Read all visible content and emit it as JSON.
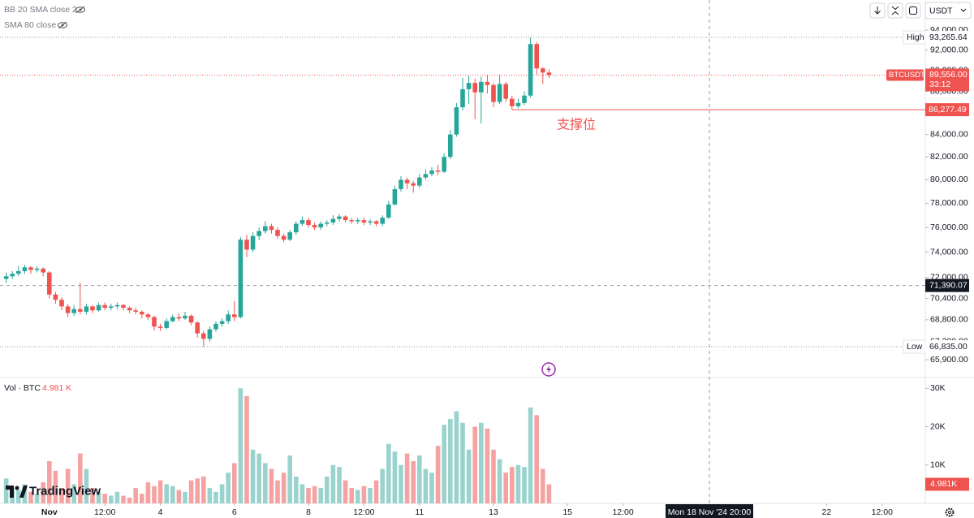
{
  "chart_data": {
    "type": "candlestick",
    "indicators": [
      "BB 20 SMA close 2",
      "SMA 80 close"
    ],
    "currency": "USDT",
    "brand": "TradingView",
    "x": [
      -7,
      -6,
      -5,
      -4,
      -3,
      -2,
      -1,
      0,
      1,
      2,
      3,
      4,
      5,
      6,
      7,
      8,
      9,
      10,
      11,
      12,
      13,
      14,
      15,
      16,
      17,
      18,
      19,
      20,
      21,
      22,
      23,
      24,
      25,
      26,
      27,
      28,
      29,
      30,
      31,
      32,
      33,
      34,
      35,
      36,
      37,
      38,
      39,
      40,
      41,
      42,
      43,
      44,
      45,
      46,
      47,
      48,
      49,
      50,
      51,
      52,
      53,
      54,
      55,
      56,
      57,
      58,
      59,
      60,
      61,
      62,
      63,
      64,
      65,
      66,
      67,
      68,
      69,
      70,
      71,
      72,
      73,
      74,
      75,
      76,
      77,
      78,
      79,
      80,
      81
    ],
    "open": [
      71900,
      72100,
      72300,
      72500,
      72800,
      72600,
      72700,
      72400,
      70700,
      70300,
      69800,
      69300,
      69600,
      69400,
      69800,
      69500,
      69900,
      69700,
      69800,
      69900,
      69700,
      69500,
      69400,
      69200,
      69000,
      68300,
      68200,
      68700,
      69000,
      68900,
      69100,
      68600,
      67800,
      67400,
      68100,
      68500,
      68700,
      69200,
      69000,
      75000,
      74200,
      75300,
      75700,
      76100,
      75800,
      75300,
      75000,
      75600,
      76300,
      76600,
      76200,
      76000,
      76300,
      76400,
      76700,
      76900,
      76600,
      76500,
      76600,
      76400,
      76500,
      76300,
      76800,
      77900,
      79200,
      80000,
      79700,
      79500,
      80200,
      80500,
      80800,
      80700,
      82000,
      84000,
      86500,
      88200,
      88800,
      87900,
      88900,
      88600,
      87000,
      88700,
      87300,
      86600,
      86900,
      87600,
      92600,
      90200,
      89800
    ],
    "high": [
      72400,
      72500,
      72900,
      73000,
      72900,
      72900,
      72800,
      72500,
      70900,
      70500,
      70000,
      69900,
      71600,
      70000,
      69900,
      70100,
      70100,
      70000,
      70100,
      70000,
      69800,
      69700,
      69500,
      69300,
      69100,
      68500,
      68900,
      69200,
      69300,
      69400,
      69200,
      68700,
      68000,
      68300,
      68700,
      68900,
      69500,
      70200,
      75200,
      75400,
      75600,
      76000,
      76500,
      76300,
      76000,
      75500,
      75800,
      76500,
      76900,
      76800,
      76400,
      76500,
      76600,
      77000,
      77100,
      77000,
      76800,
      76800,
      76800,
      76700,
      76600,
      77000,
      78200,
      79500,
      80300,
      80200,
      79900,
      80500,
      80900,
      81100,
      81300,
      82300,
      84400,
      86900,
      89300,
      89500,
      89200,
      89400,
      89600,
      88800,
      89600,
      88900,
      87600,
      87300,
      88000,
      93265.64,
      92800,
      90300,
      90100
    ],
    "low": [
      71600,
      71900,
      72100,
      72300,
      72300,
      72400,
      72100,
      70400,
      70000,
      69500,
      69000,
      69100,
      69200,
      69200,
      69300,
      69400,
      69500,
      69500,
      69600,
      69500,
      69300,
      69200,
      68900,
      68800,
      68000,
      68000,
      68100,
      68600,
      68700,
      68800,
      68400,
      67500,
      66835,
      67200,
      67900,
      68300,
      68500,
      68700,
      68900,
      73600,
      74000,
      75000,
      75500,
      75500,
      75100,
      74800,
      74900,
      75400,
      76100,
      76000,
      75800,
      75800,
      76100,
      76200,
      76500,
      76400,
      76300,
      76300,
      76200,
      76200,
      76100,
      76100,
      76700,
      77800,
      79000,
      79200,
      78900,
      79300,
      80000,
      80300,
      80400,
      80600,
      81800,
      83800,
      86200,
      86800,
      85400,
      85000,
      87800,
      86500,
      86800,
      87000,
      86277.49,
      86400,
      86700,
      87400,
      89600,
      88700,
      89300
    ],
    "close": [
      72100,
      72300,
      72500,
      72800,
      72600,
      72700,
      72400,
      70700,
      70300,
      69800,
      69300,
      69600,
      69400,
      69800,
      69500,
      69900,
      69700,
      69800,
      69900,
      69700,
      69500,
      69400,
      69200,
      69000,
      68300,
      68200,
      68700,
      69000,
      68900,
      69100,
      68600,
      67800,
      67400,
      68100,
      68500,
      68700,
      69200,
      69000,
      75000,
      74200,
      75300,
      75700,
      76100,
      75800,
      75300,
      75000,
      75600,
      76300,
      76600,
      76200,
      76000,
      76300,
      76400,
      76700,
      76900,
      76600,
      76500,
      76600,
      76400,
      76500,
      76300,
      76800,
      77900,
      79200,
      80000,
      79700,
      79500,
      80200,
      80500,
      80800,
      80700,
      82000,
      84000,
      86500,
      88200,
      88800,
      87900,
      88900,
      88600,
      87000,
      88700,
      87300,
      86600,
      86900,
      87600,
      92600,
      90200,
      89800,
      89556
    ],
    "up_color": "#26a69a",
    "down_color": "#ef5350",
    "xlim": [
      -8,
      142
    ],
    "xticks": [
      {
        "value": 0,
        "label": "Nov"
      },
      {
        "value": 9,
        "label": "12:00"
      },
      {
        "value": 18,
        "label": "4"
      },
      {
        "value": 30,
        "label": "6"
      },
      {
        "value": 42,
        "label": "8"
      },
      {
        "value": 51,
        "label": "12:00"
      },
      {
        "value": 60,
        "label": "11"
      },
      {
        "value": 72,
        "label": "13"
      },
      {
        "value": 84,
        "label": "15"
      },
      {
        "value": 93,
        "label": "12:00"
      },
      {
        "value": 126,
        "label": "22"
      },
      {
        "value": 135,
        "label": "12:00"
      }
    ],
    "ylim": [
      64650,
      97100
    ],
    "log_scale": true,
    "yticks": [
      {
        "value": 94000,
        "label": "94,000.00"
      },
      {
        "value": 92000,
        "label": "92,000.00"
      },
      {
        "value": 90000,
        "label": "90,000.00"
      },
      {
        "value": 88000,
        "label": "88,000.00"
      },
      {
        "value": 84000,
        "label": "84,000.00"
      },
      {
        "value": 82000,
        "label": "82,000.00"
      },
      {
        "value": 80000,
        "label": "80,000.00"
      },
      {
        "value": 78000,
        "label": "78,000.00"
      },
      {
        "value": 76000,
        "label": "76,000.00"
      },
      {
        "value": 74000,
        "label": "74,000.00"
      },
      {
        "value": 72000,
        "label": "72,000.00"
      },
      {
        "value": 70400,
        "label": "70,400.00"
      },
      {
        "value": 68800,
        "label": "68,800.00"
      },
      {
        "value": 67200,
        "label": "67,200.00"
      },
      {
        "value": 65900,
        "label": "65,900.00"
      }
    ],
    "high_marker": {
      "label": "High",
      "value": 93265.64,
      "value_label": "93,265.64"
    },
    "low_marker": {
      "label": "Low",
      "value": 66835,
      "value_label": "66,835.00"
    },
    "last_price": {
      "symbol": "BTCUSDT",
      "value": 89556,
      "value_label": "89,556.00",
      "countdown": "33:12"
    },
    "support": {
      "label": "支撑位",
      "x": 75,
      "value": 86277.49,
      "value_label": "86,277.49"
    },
    "crosshair": {
      "x": 107,
      "x_label": "Mon 18 Nov '24 20:00",
      "y": 71390.07,
      "y_label": "71,390.07"
    },
    "volume": {
      "title": "Vol · BTC",
      "values": [
        6500,
        4000,
        3500,
        5000,
        3000,
        2500,
        5500,
        11000,
        8500,
        4000,
        9000,
        5000,
        13000,
        9000,
        4000,
        3000,
        2500,
        2000,
        3000,
        2000,
        1500,
        4000,
        2500,
        5500,
        4500,
        6000,
        5000,
        4500,
        3500,
        3000,
        6000,
        6500,
        7000,
        4000,
        3000,
        5000,
        8000,
        10500,
        30000,
        28000,
        14000,
        13000,
        10500,
        9000,
        6000,
        8000,
        12500,
        7000,
        5000,
        4000,
        4500,
        4000,
        7000,
        10000,
        9500,
        6000,
        4000,
        3500,
        4500,
        4000,
        6000,
        9000,
        15500,
        13500,
        10000,
        13000,
        11000,
        12500,
        9000,
        8000,
        15000,
        20500,
        22000,
        24000,
        21000,
        14000,
        20000,
        21000,
        19500,
        14000,
        11500,
        8000,
        9500,
        10000,
        9500,
        25000,
        23000,
        9000,
        4981
      ],
      "last_value": 4981,
      "last_label": "4.981 K",
      "axis_label": "4.981K",
      "up_color": "#9ad3ce",
      "down_color": "#f5a3a2",
      "ylim": [
        0,
        32800
      ],
      "yticks": [
        {
          "value": 10000,
          "label": "10K"
        },
        {
          "value": 20000,
          "label": "20K"
        },
        {
          "value": 30000,
          "label": "30K"
        }
      ]
    }
  }
}
